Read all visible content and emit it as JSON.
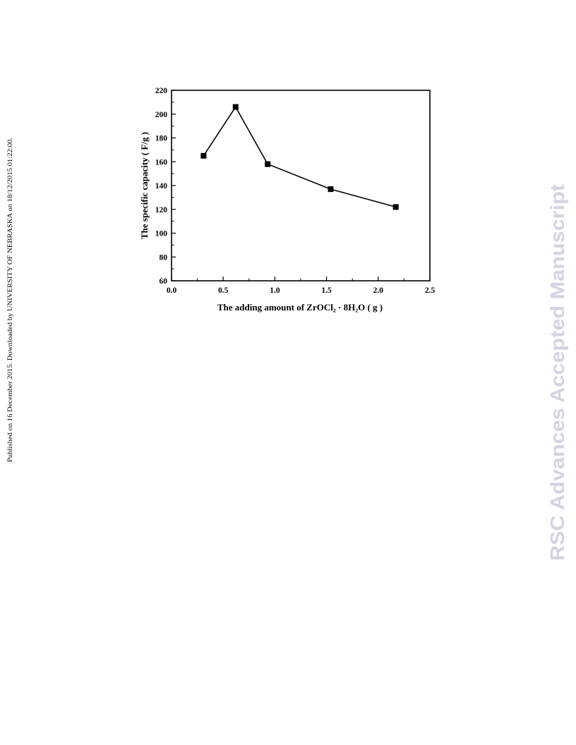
{
  "side_note": {
    "text": "Published on 16 December 2015. Downloaded by UNIVERSITY OF NEBRASKA on 18/12/2015 01:22:00."
  },
  "watermark": {
    "text": "RSC Advances Accepted Manuscript",
    "color": "#d3d3e3"
  },
  "chart_data": {
    "type": "line",
    "title": "",
    "xlabel": "The adding amount of ZrOCl₂ · 8H₂O ( g )",
    "ylabel": "The specific capacity ( F/g )",
    "xlim": [
      0.0,
      2.5
    ],
    "ylim": [
      60,
      220
    ],
    "xticks": [
      "0.0",
      "0.5",
      "1.0",
      "1.5",
      "2.0",
      "2.5"
    ],
    "yticks": [
      "60",
      "80",
      "100",
      "120",
      "140",
      "160",
      "180",
      "200",
      "220"
    ],
    "grid": false,
    "marker": "square",
    "line_color": "#000000",
    "series": [
      {
        "x": [
          0.31,
          0.62,
          0.93,
          1.54,
          2.17
        ],
        "y": [
          165,
          206,
          158,
          137,
          122
        ]
      }
    ]
  }
}
